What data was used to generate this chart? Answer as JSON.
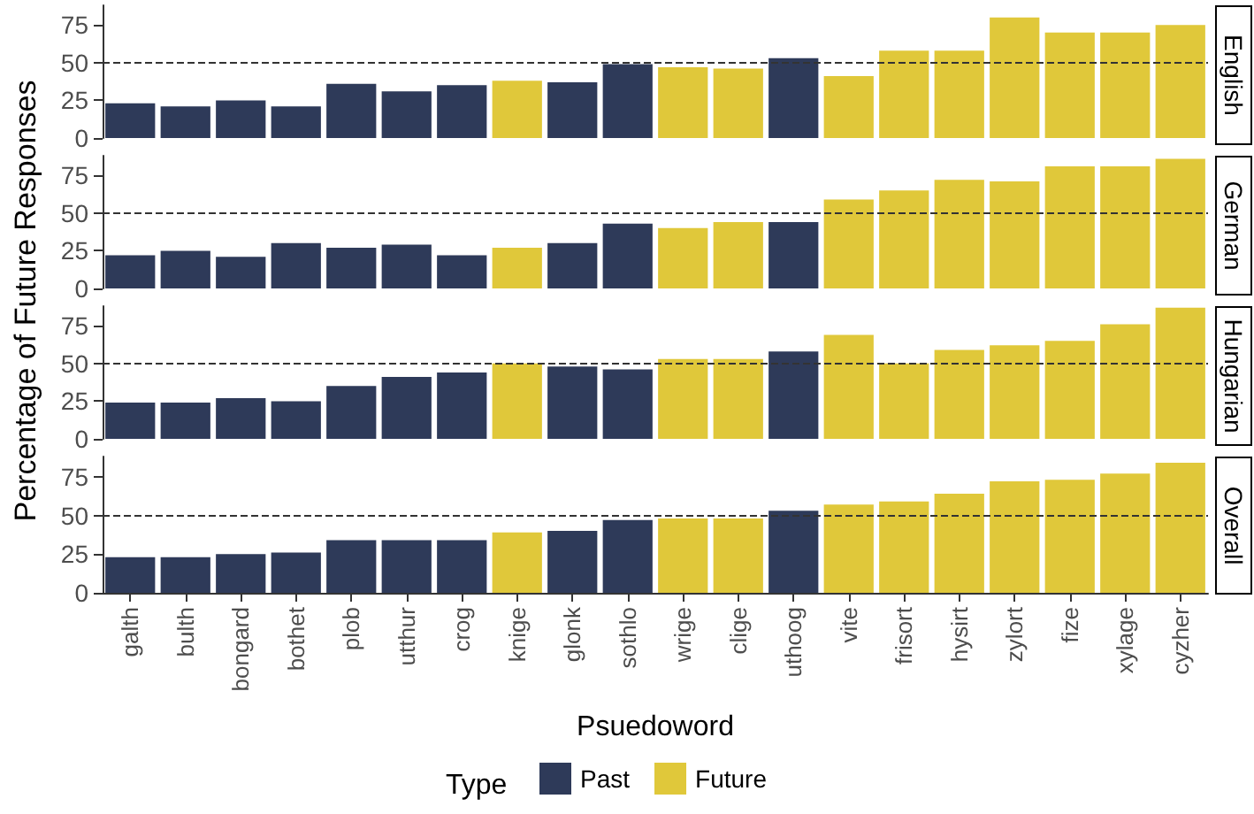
{
  "chart_data": [
    {
      "type": "bar",
      "title": "English",
      "ylabel": "Percentage of Future Responses",
      "tick_labels": "y",
      "series": [
        {
          "color": "#2e3a59",
          "values": [
            23,
            21,
            25,
            21,
            36,
            31,
            35,
            null,
            37,
            49,
            null,
            null,
            53,
            null,
            null,
            null,
            null,
            null,
            null,
            null
          ]
        },
        {
          "color": "#e0c83a",
          "values": [
            null,
            null,
            null,
            null,
            null,
            null,
            null,
            38,
            null,
            null,
            47,
            46,
            null,
            41,
            58,
            58,
            80,
            70,
            70,
            75
          ]
        }
      ],
      "ylim": [
        0,
        88
      ],
      "yticks": [
        0,
        25,
        50,
        75
      ],
      "ref_lines": [
        {
          "axis": "y",
          "value": 50,
          "line_style": "dashed",
          "color": "#333333"
        }
      ]
    },
    {
      "type": "bar",
      "title": "German",
      "tick_labels": "y",
      "series": [
        {
          "color": "#2e3a59",
          "values": [
            22,
            25,
            21,
            30,
            27,
            29,
            22,
            null,
            30,
            43,
            null,
            null,
            44,
            null,
            null,
            null,
            null,
            null,
            null,
            null
          ]
        },
        {
          "color": "#e0c83a",
          "values": [
            null,
            null,
            null,
            null,
            null,
            null,
            null,
            27,
            null,
            null,
            40,
            44,
            null,
            59,
            65,
            72,
            71,
            81,
            81,
            86
          ]
        }
      ],
      "ylim": [
        0,
        88
      ],
      "yticks": [
        0,
        25,
        50,
        75
      ],
      "ref_lines": [
        {
          "axis": "y",
          "value": 50,
          "line_style": "dashed",
          "color": "#333333"
        }
      ]
    },
    {
      "type": "bar",
      "title": "Hungarian",
      "tick_labels": "y",
      "series": [
        {
          "color": "#2e3a59",
          "values": [
            24,
            24,
            27,
            25,
            35,
            41,
            44,
            null,
            48,
            46,
            null,
            null,
            58,
            null,
            null,
            null,
            null,
            null,
            null,
            null
          ]
        },
        {
          "color": "#e0c83a",
          "values": [
            null,
            null,
            null,
            null,
            null,
            null,
            null,
            50,
            null,
            null,
            53,
            53,
            null,
            69,
            50,
            59,
            62,
            65,
            76,
            87
          ]
        }
      ],
      "ylim": [
        0,
        88
      ],
      "yticks": [
        0,
        25,
        50,
        75
      ],
      "ref_lines": [
        {
          "axis": "y",
          "value": 50,
          "line_style": "dashed",
          "color": "#333333"
        }
      ]
    },
    {
      "type": "bar",
      "title": "Overall",
      "xlabel": "Psuedoword",
      "legend": "bottom",
      "legend_title": "Type",
      "categories": [
        "galth",
        "bulth",
        "bongard",
        "bothet",
        "plob",
        "utthur",
        "crog",
        "knige",
        "glonk",
        "sothlo",
        "wrige",
        "clige",
        "uthoog",
        "vite",
        "frisort",
        "hysirt",
        "zylort",
        "fize",
        "xylage",
        "cyzher"
      ],
      "series": [
        {
          "name": "Past",
          "color": "#2e3a59",
          "values": [
            23,
            23,
            25,
            26,
            34,
            34,
            34,
            null,
            40,
            47,
            null,
            null,
            53,
            null,
            null,
            null,
            null,
            null,
            null,
            null
          ]
        },
        {
          "name": "Future",
          "color": "#e0c83a",
          "values": [
            null,
            null,
            null,
            null,
            null,
            null,
            null,
            39,
            null,
            null,
            48,
            48,
            null,
            57,
            59,
            64,
            72,
            73,
            77,
            84
          ]
        }
      ],
      "ylim": [
        0,
        88
      ],
      "yticks": [
        0,
        25,
        50,
        75
      ],
      "ref_lines": [
        {
          "axis": "y",
          "value": 50,
          "line_style": "dashed",
          "color": "#333333"
        }
      ]
    }
  ]
}
